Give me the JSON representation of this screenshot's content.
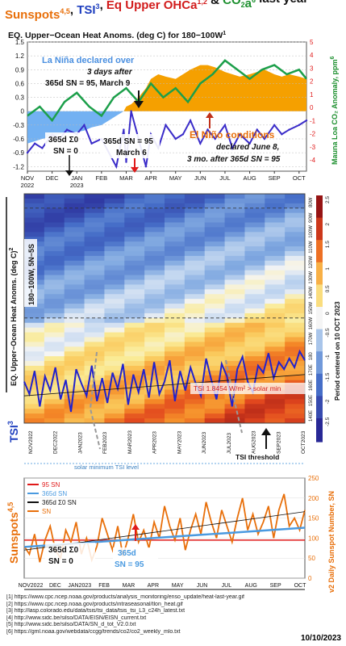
{
  "header": {
    "parts": [
      {
        "t": "Sunspots",
        "c": "#e86f0a"
      },
      {
        "t": "4,5",
        "c": "#e86f0a",
        "sup": true
      },
      {
        "t": ", ",
        "c": "#111"
      },
      {
        "t": "TSI",
        "c": "#1f3fbf"
      },
      {
        "t": "3",
        "c": "#1f3fbf",
        "sup": true
      },
      {
        "t": ", ",
        "c": "#111"
      },
      {
        "t": "Eq Upper OHCa",
        "c": "#d21c1c"
      },
      {
        "t": "1,2",
        "c": "#d21c1c",
        "sup": true
      },
      {
        "t": " & ",
        "c": "#111"
      },
      {
        "t": "CO",
        "c": "#1c8f2e"
      },
      {
        "t": "2",
        "c": "#1c8f2e",
        "sub": true
      },
      {
        "t": "a",
        "c": "#1c8f2e"
      },
      {
        "t": "6",
        "c": "#1c8f2e",
        "sup": true
      },
      {
        "t": " last year",
        "c": "#111"
      }
    ]
  },
  "chart_data": [
    {
      "type": "area",
      "title": "EQ. Upper−Ocean Heat Anoms. (deg C) for 180−100W",
      "title_sup": "1",
      "ylabel_right": "Mauna Loa CO₂ Anomaly, ppm",
      "ylabel_right_sup": "6",
      "ylim": [
        -1.3,
        1.5
      ],
      "yticks": [
        "1.5",
        "1.2",
        "0.9",
        "0.6",
        "0.3",
        "0",
        "-0.3",
        "-0.6",
        "-0.9",
        "-1.2"
      ],
      "ytick_values": [
        1.5,
        1.2,
        0.9,
        0.6,
        0.3,
        0,
        -0.3,
        -0.6,
        -0.9,
        -1.2
      ],
      "right_ticks": [
        "5",
        "4",
        "3",
        "2",
        "1",
        "0",
        "-1",
        "-2",
        "-3",
        "-4"
      ],
      "right_tick_values": [
        5,
        4,
        3,
        2,
        1,
        0,
        -1,
        -2,
        -3,
        -4
      ],
      "x_labels": [
        "NOV\n2022",
        "DEC",
        "JAN\n2023",
        "FEB",
        "MAR",
        "APR",
        "MAY",
        "JUN",
        "JUL",
        "AUG",
        "SEP",
        "OCT"
      ],
      "x_label_pos": [
        0,
        1,
        2,
        3,
        4,
        5,
        6,
        7,
        8,
        9,
        10,
        11
      ],
      "x_range": [
        0,
        11.3
      ],
      "ohc_series": {
        "x": [
          0,
          0.3,
          0.6,
          1.0,
          1.3,
          1.6,
          2.0,
          2.3,
          2.6,
          3.0,
          3.3,
          3.6,
          3.9,
          4.0,
          4.2,
          4.5,
          4.8,
          5.0,
          5.3,
          5.6,
          6.0,
          6.3,
          6.6,
          7.0,
          7.3,
          7.6,
          8.0,
          8.3,
          8.6,
          9.0,
          9.3,
          9.6,
          10.0,
          10.3,
          10.6,
          11.0,
          11.3
        ],
        "y": [
          -0.7,
          -0.65,
          -0.6,
          -0.55,
          -0.5,
          -0.48,
          -0.45,
          -0.42,
          -0.35,
          -0.3,
          -0.2,
          -0.1,
          0.0,
          0.1,
          0.15,
          0.3,
          0.5,
          0.7,
          0.8,
          0.75,
          0.7,
          0.8,
          0.9,
          1.0,
          1.0,
          0.95,
          0.85,
          0.8,
          0.75,
          0.8,
          0.85,
          0.9,
          0.8,
          0.75,
          0.8,
          0.75,
          0.7
        ],
        "pos_color": "#f5a000",
        "neg_color": "#5aa3f0"
      },
      "tsi_line": {
        "x": [
          0,
          0.3,
          0.6,
          1.0,
          1.3,
          1.6,
          2.0,
          2.3,
          2.6,
          3.0,
          3.3,
          3.6,
          3.9,
          4.0,
          4.2,
          4.5,
          4.8,
          5.0,
          5.3,
          5.6,
          6.0,
          6.3,
          6.6,
          7.0,
          7.3,
          7.6,
          8.0,
          8.3,
          8.6,
          9.0,
          9.3,
          9.6,
          10.0,
          10.3,
          10.6,
          11.0,
          11.3
        ],
        "y": [
          -0.9,
          -0.7,
          -0.8,
          -0.5,
          -0.6,
          -0.4,
          -0.5,
          -0.3,
          -0.7,
          -0.6,
          -0.9,
          -1.2,
          -0.4,
          -1.1,
          0.0,
          -0.6,
          -1.2,
          -0.5,
          -0.8,
          -0.3,
          -0.6,
          -0.5,
          -0.2,
          -0.7,
          -0.4,
          -0.6,
          -0.3,
          -0.8,
          -0.5,
          -0.7,
          -0.4,
          -0.6,
          -0.3,
          -0.5,
          -0.4,
          -0.3,
          -0.2
        ],
        "color": "#3a2cc9"
      },
      "co2_series": {
        "name": "CO2",
        "x": [
          0,
          0.5,
          1.0,
          1.5,
          2.0,
          2.5,
          3.0,
          3.5,
          4.0,
          4.5,
          5.0,
          5.5,
          6.0,
          6.5,
          7.0,
          7.5,
          8.0,
          8.5,
          9.0,
          9.5,
          10.0,
          10.5,
          11.0,
          11.3
        ],
        "y": [
          -0.1,
          0.1,
          -0.2,
          0.2,
          0.4,
          0.1,
          -0.1,
          0.3,
          0.5,
          0.2,
          0.6,
          0.3,
          0.5,
          0.2,
          0.6,
          0.8,
          1.1,
          0.9,
          0.7,
          0.9,
          1.0,
          0.8,
          0.9,
          0.7
        ],
        "color": "#1c9f4a"
      },
      "annotations": [
        {
          "text": "La Niña declared over",
          "color": "#4a8fe0"
        },
        {
          "text": "3 days after",
          "color": "#111"
        },
        {
          "text": "365d SN = 95, March 9",
          "color": "#111"
        },
        {
          "text": "365d Σ0",
          "color": "#111"
        },
        {
          "text": "SN = 0",
          "color": "#111"
        },
        {
          "text": "365d SN = 95",
          "color": "#111"
        },
        {
          "text": "March 6",
          "color": "#111"
        },
        {
          "text": "El Niño conditions",
          "color": "#e86f0a"
        },
        {
          "text": "declared June 8,",
          "color": "#111"
        },
        {
          "text": "3 mo. after 365d SN = 95",
          "color": "#111"
        }
      ]
    },
    {
      "type": "heatmap",
      "ylabel": "EQ. Upper−Ocean Heat Anoms. (deg C)",
      "ylabel_sup": "2",
      "ylabel_sub": "180−100W, 5N−5S",
      "longitudes": [
        "140E",
        "150E",
        "160E",
        "170E",
        "180",
        "170W",
        "160W",
        "150W",
        "140W",
        "130W",
        "120W",
        "110W",
        "100W",
        "90W",
        "80W"
      ],
      "colorbar_ticks": [
        "2.5",
        "2",
        "1.5",
        "1",
        "0.5",
        "0",
        "-0.5",
        "-1",
        "-1.5",
        "-2",
        "-2.5"
      ],
      "colorbar_label": "Period centered on 10 OCT 2023",
      "tsi_label": "TSI 1.8454 W/m² > solar min",
      "tsi_axis_label": "TSI",
      "tsi_axis_sup": "3",
      "solar_min_label": "solar minimum TSI level",
      "threshold_label": "TSI threshold",
      "x_labels": [
        "NOV2022",
        "DEC2022",
        "JAN2023",
        "FEB2023",
        "MAR2023",
        "APR2023",
        "MAY2023",
        "JUN2023",
        "JUL2023",
        "AUG2023",
        "SEP2023",
        "OCT2023"
      ],
      "tsi_values": [
        0.2,
        -0.5,
        0.8,
        -1.2,
        0.5,
        -0.3,
        1.0,
        -0.8,
        0.3,
        -1.5,
        0.9,
        0.1,
        -0.6,
        1.1,
        -0.9,
        0.4,
        -1.0,
        0.7,
        -0.2,
        1.2,
        -1.1,
        0.6,
        -0.4,
        0.9,
        -0.7,
        1.3,
        -0.5,
        0.2,
        1.4,
        -0.9,
        0.8,
        -0.3,
        1.0,
        0.1,
        -0.6,
        1.5,
        0.3,
        -0.8,
        1.2,
        0.5,
        -1.2,
        0.9,
        1.6,
        0.2,
        -0.4,
        1.1,
        0.7,
        1.8,
        0.4,
        1.3,
        0.9,
        1.5,
        1.0,
        1.9,
        1.4
      ],
      "tsi_threshold": 0.0
    },
    {
      "type": "line",
      "ylabel": "v2 Daily Sunspot Number, SN",
      "side_label": "Sunspots",
      "side_label_sup": "4,5",
      "ylim": [
        0,
        250
      ],
      "yticks": [
        "250",
        "200",
        "150",
        "100",
        "50",
        "0"
      ],
      "ytick_values": [
        250,
        200,
        150,
        100,
        50,
        0
      ],
      "x_labels": [
        "NOV2022",
        "DEC",
        "JAN2023",
        "FEB",
        "MAR",
        "APR",
        "MAY",
        "JUN",
        "JUL",
        "AUG",
        "SEP",
        "OCT"
      ],
      "legend": [
        {
          "text": "95 SN",
          "color": "#e01a1a"
        },
        {
          "text": "365d SN",
          "color": "#4a9ae0"
        },
        {
          "text": "365d Σ0 SN",
          "color": "#111"
        },
        {
          "text": "SN",
          "color": "#e86f0a"
        }
      ],
      "threshold": 95,
      "sn_daily": [
        80,
        60,
        110,
        40,
        95,
        130,
        70,
        50,
        120,
        90,
        140,
        60,
        100,
        45,
        80,
        150,
        110,
        70,
        130,
        55,
        100,
        160,
        90,
        120,
        75,
        140,
        100,
        180,
        130,
        95,
        150,
        70,
        120,
        160,
        110,
        190,
        140,
        100,
        170,
        130,
        90,
        150,
        200,
        120,
        160,
        110,
        140,
        180,
        100,
        170,
        210,
        130,
        150,
        120,
        170
      ],
      "sn_365d": [
        78,
        80,
        82,
        84,
        86,
        88,
        90,
        92,
        94,
        96,
        98,
        100,
        102,
        104,
        106,
        108,
        110,
        112,
        114,
        116,
        118,
        120,
        122,
        124,
        126
      ],
      "sn_sigma": [
        70,
        76,
        82,
        88,
        94,
        100,
        106,
        112,
        118,
        124,
        130,
        136,
        142,
        148,
        154,
        160,
        166
      ],
      "annotations": [
        {
          "text": "365d Σ0",
          "color": "#111"
        },
        {
          "text": "SN = 0",
          "color": "#111"
        },
        {
          "text": "365d",
          "color": "#4a9ae0"
        },
        {
          "text": "SN = 95",
          "color": "#4a9ae0"
        }
      ]
    }
  ],
  "references": [
    "[1] https://www.cpc.ncep.noaa.gov/products/analysis_monitoring/enso_update/heat-last-year.gif",
    "[2] https://www.cpc.ncep.noaa.gov/products/intraseasonal/tlon_heat.gif",
    "[3] http://lasp.colorado.edu/data/tsis/tsi_data/tsis_tsi_L3_c24h_latest.txt",
    "[4] http://www.sidc.be/silso/DATA/EISN/EISN_current.txt",
    "[5] http://www.sidc.be/silso/DATA/SN_d_tot_V2.0.txt",
    "[6] https://gml.noaa.gov/webdata/ccgg/trends/co2/co2_weekly_mlo.txt"
  ],
  "date": "10/10/2023"
}
